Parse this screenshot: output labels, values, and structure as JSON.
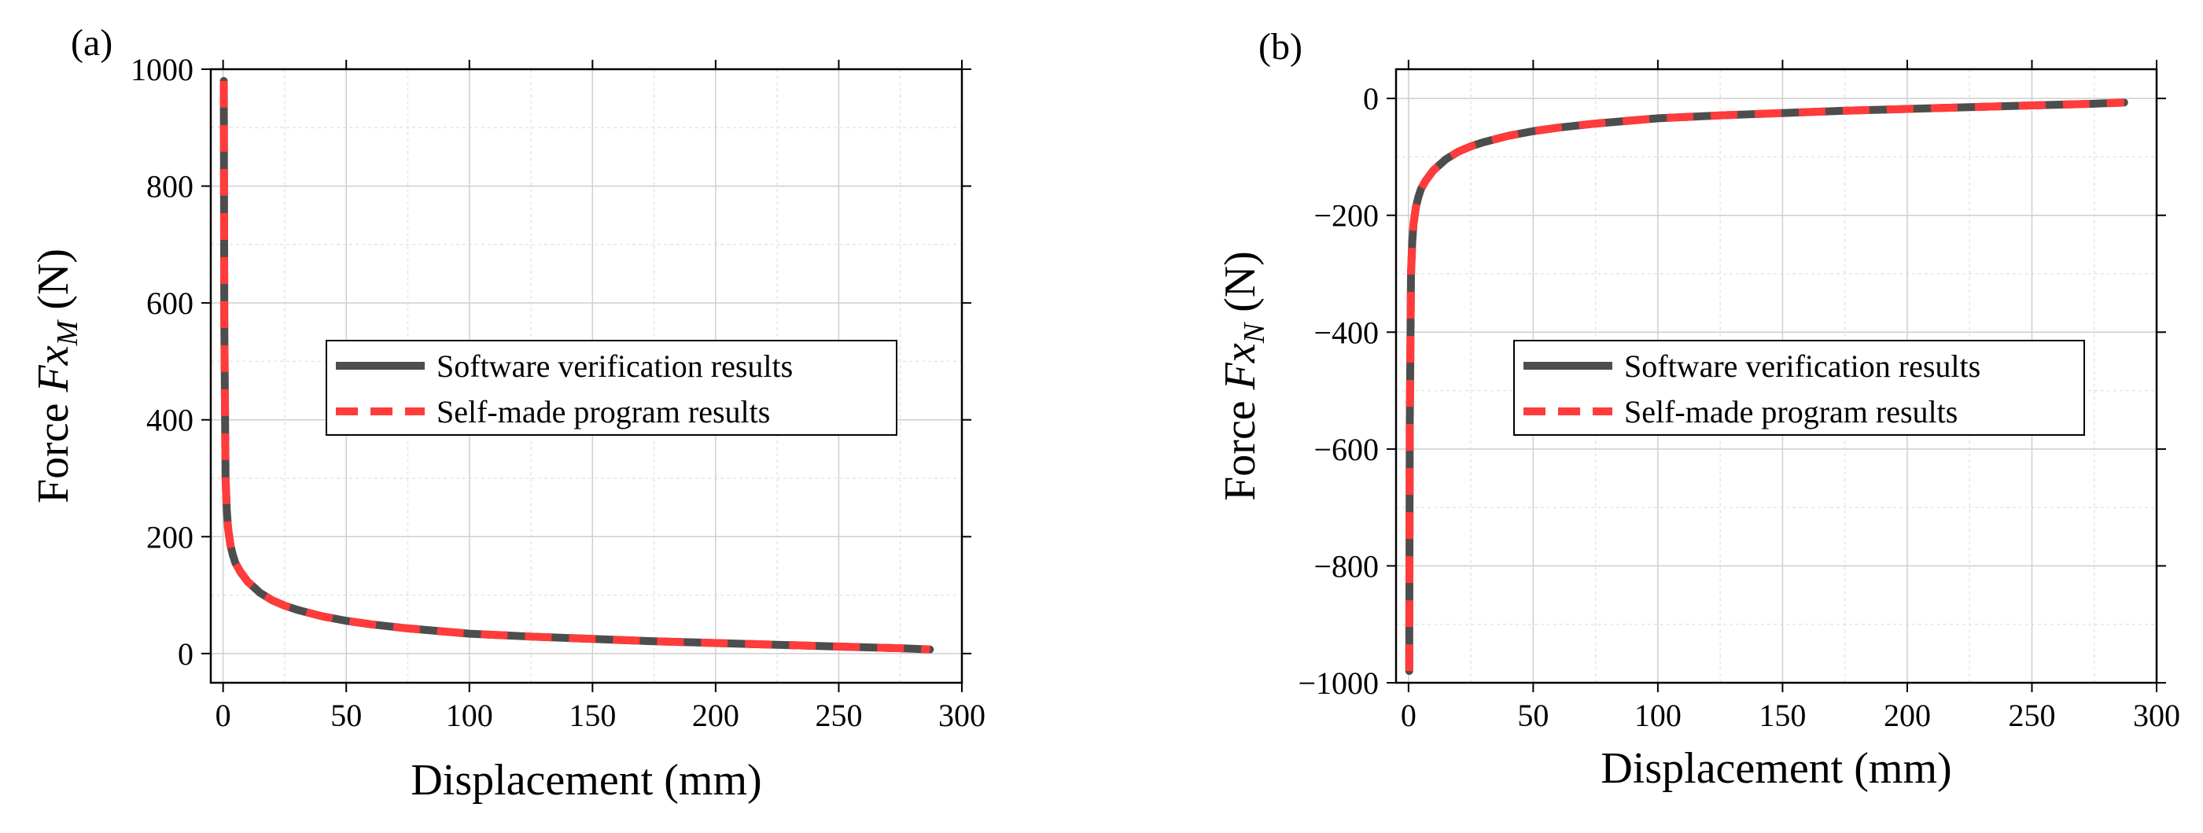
{
  "chart_data": [
    {
      "panel_label": "(a)",
      "type": "line",
      "xlabel": "Displacement (mm)",
      "ylabel": {
        "prefix": "Force ",
        "symbol": "Fx",
        "subscript": "M",
        "unit": " (N)"
      },
      "xlim": [
        -5,
        300
      ],
      "ylim": [
        -50,
        1000
      ],
      "xticks": [
        0,
        50,
        100,
        150,
        200,
        250,
        300
      ],
      "yticks": [
        0,
        200,
        400,
        600,
        800,
        1000
      ],
      "x_tick_labels": [
        "0",
        "50",
        "100",
        "150",
        "200",
        "250",
        "300"
      ],
      "y_tick_labels": [
        "0",
        "200",
        "400",
        "600",
        "800",
        "1000"
      ],
      "grid": true,
      "legend_position": "center-right",
      "series": [
        {
          "name": "Software verification results",
          "style": "solid",
          "color": "#4d4d4d",
          "x": [
            0.28,
            0.5,
            1,
            1.5,
            2,
            3,
            4,
            5,
            7,
            10,
            15,
            20,
            25,
            30,
            40,
            50,
            60,
            75,
            100,
            125,
            150,
            175,
            200,
            225,
            250,
            275,
            287
          ],
          "y": [
            980,
            560,
            300,
            245,
            215,
            185,
            168,
            155,
            140,
            123,
            104,
            91,
            82,
            75,
            64,
            56,
            50,
            43,
            34,
            29,
            25,
            21,
            18,
            15,
            12,
            9,
            7
          ]
        },
        {
          "name": "Self-made program results",
          "style": "dashed",
          "color": "#ff3b3b",
          "x": [
            0.28,
            0.5,
            1,
            1.5,
            2,
            3,
            4,
            5,
            7,
            10,
            15,
            20,
            25,
            30,
            40,
            50,
            60,
            75,
            100,
            125,
            150,
            175,
            200,
            225,
            250,
            275,
            287
          ],
          "y": [
            980,
            560,
            300,
            245,
            215,
            185,
            168,
            155,
            140,
            123,
            104,
            91,
            82,
            75,
            64,
            56,
            50,
            43,
            34,
            29,
            25,
            21,
            18,
            15,
            12,
            9,
            7
          ]
        }
      ]
    },
    {
      "panel_label": "(b)",
      "type": "line",
      "xlabel": "Displacement (mm)",
      "ylabel": {
        "prefix": "Force ",
        "symbol": "Fx",
        "subscript": "N",
        "unit": " (N)"
      },
      "xlim": [
        -5,
        300
      ],
      "ylim": [
        -1000,
        50
      ],
      "xticks": [
        0,
        50,
        100,
        150,
        200,
        250,
        300
      ],
      "yticks": [
        -1000,
        -800,
        -600,
        -400,
        -200,
        0
      ],
      "x_tick_labels": [
        "0",
        "50",
        "100",
        "150",
        "200",
        "250",
        "300"
      ],
      "y_tick_labels": [
        "−1000",
        "−800",
        "−600",
        "−400",
        "−200",
        "0"
      ],
      "grid": true,
      "legend_position": "center-right",
      "series": [
        {
          "name": "Software verification results",
          "style": "solid",
          "color": "#4d4d4d",
          "x": [
            0.28,
            0.5,
            1,
            1.5,
            2,
            3,
            4,
            5,
            7,
            10,
            15,
            20,
            25,
            30,
            40,
            50,
            60,
            75,
            100,
            125,
            150,
            175,
            200,
            225,
            250,
            275,
            287
          ],
          "y": [
            -980,
            -560,
            -300,
            -245,
            -215,
            -185,
            -168,
            -155,
            -140,
            -123,
            -104,
            -91,
            -82,
            -75,
            -64,
            -56,
            -50,
            -43,
            -34,
            -29,
            -25,
            -21,
            -18,
            -15,
            -12,
            -9,
            -7
          ]
        },
        {
          "name": "Self-made program results",
          "style": "dashed",
          "color": "#ff3b3b",
          "x": [
            0.28,
            0.5,
            1,
            1.5,
            2,
            3,
            4,
            5,
            7,
            10,
            15,
            20,
            25,
            30,
            40,
            50,
            60,
            75,
            100,
            125,
            150,
            175,
            200,
            225,
            250,
            275,
            287
          ],
          "y": [
            -980,
            -560,
            -300,
            -245,
            -215,
            -185,
            -168,
            -155,
            -140,
            -123,
            -104,
            -91,
            -82,
            -75,
            -64,
            -56,
            -50,
            -43,
            -34,
            -29,
            -25,
            -21,
            -18,
            -15,
            -12,
            -9,
            -7
          ]
        }
      ]
    }
  ]
}
